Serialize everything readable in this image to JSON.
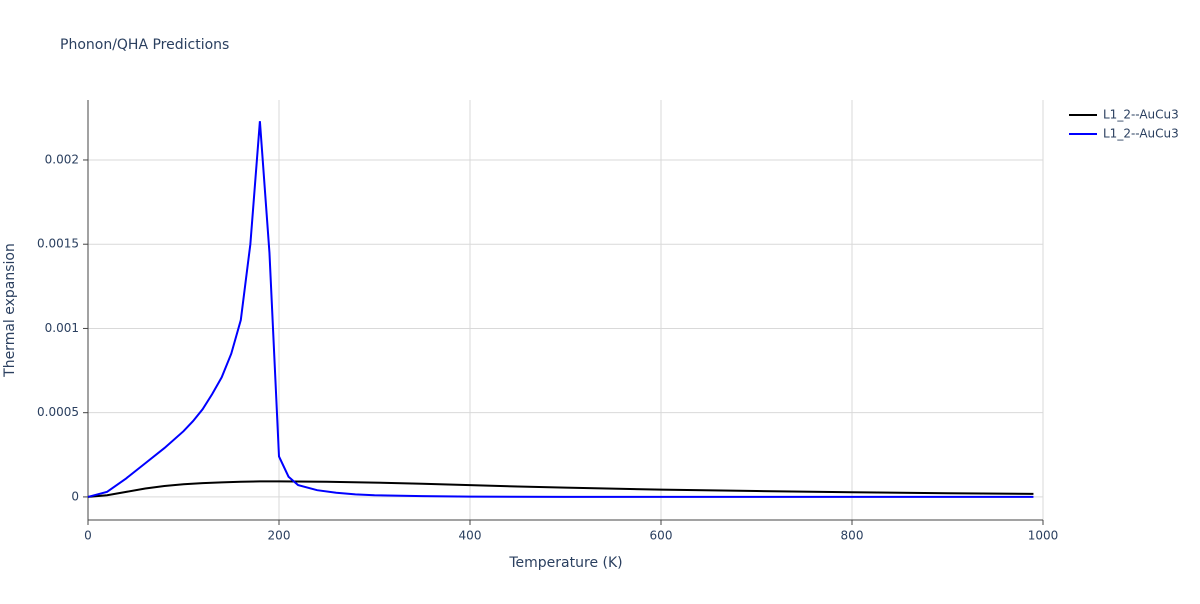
{
  "chart_data": {
    "type": "line",
    "title": "Phonon/QHA Predictions",
    "x_label": "Temperature (K)",
    "y_label": "Thermal expansion",
    "xlim": [
      0,
      1000
    ],
    "ylim": [
      -0.000137,
      0.002356
    ],
    "xticks": [
      0,
      200,
      400,
      600,
      800,
      1000
    ],
    "yticks": [
      0,
      0.0005,
      0.001,
      0.0015,
      0.002
    ],
    "grid": true,
    "legend": "outside-right",
    "series": [
      {
        "name": "L1_2--AuCu3",
        "color": "#000000",
        "x": [
          0,
          20,
          40,
          60,
          80,
          100,
          120,
          140,
          160,
          180,
          200,
          250,
          300,
          350,
          400,
          450,
          500,
          600,
          700,
          800,
          900,
          990
        ],
        "values": [
          0,
          1e-05,
          3e-05,
          5e-05,
          6.5e-05,
          7.5e-05,
          8.2e-05,
          8.6e-05,
          9e-05,
          9.2e-05,
          9.2e-05,
          9e-05,
          8.5e-05,
          7.8e-05,
          7e-05,
          6.2e-05,
          5.5e-05,
          4.3e-05,
          3.5e-05,
          2.8e-05,
          2.2e-05,
          1.8e-05
        ]
      },
      {
        "name": "L1_2--AuCu3",
        "color": "#0000ff",
        "x": [
          0,
          20,
          40,
          60,
          80,
          100,
          110,
          120,
          130,
          140,
          150,
          160,
          170,
          180,
          190,
          200,
          210,
          220,
          240,
          260,
          280,
          300,
          350,
          400,
          500,
          600,
          800,
          990
        ],
        "values": [
          0,
          3e-05,
          0.00011,
          0.0002,
          0.00029,
          0.00039,
          0.00045,
          0.00052,
          0.00061,
          0.00071,
          0.00085,
          0.00105,
          0.0015,
          0.00223,
          0.00145,
          0.00024,
          0.00012,
          7e-05,
          4e-05,
          2.5e-05,
          1.5e-05,
          1e-05,
          5e-06,
          2e-06,
          0,
          0,
          0,
          0
        ]
      }
    ]
  }
}
